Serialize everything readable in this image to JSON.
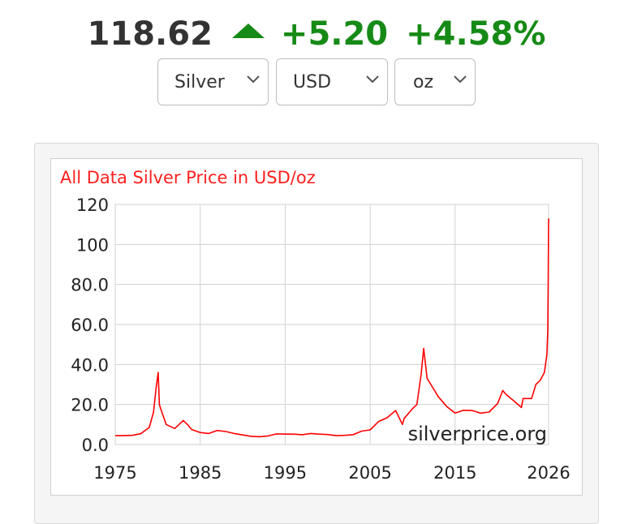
{
  "quote": {
    "price": "118.62",
    "change_abs": "+5.20",
    "change_pct": "+4.58%",
    "direction": "up",
    "up_color": "#168a16"
  },
  "selectors": {
    "metal": "Silver",
    "currency": "USD",
    "unit": "oz"
  },
  "chart_data": {
    "type": "line",
    "title": "All Data Silver Price in USD/oz",
    "xlabel": "",
    "ylabel": "",
    "xlim": [
      1975,
      2026
    ],
    "ylim": [
      0,
      120
    ],
    "x_ticks": [
      "1975",
      "1985",
      "1995",
      "2005",
      "2015",
      "2026"
    ],
    "y_ticks": [
      "0.0",
      "20.0",
      "40.0",
      "60.0",
      "80.0",
      "100",
      "120"
    ],
    "grid": true,
    "legend": "none",
    "watermark": "silverprice.org",
    "series": [
      {
        "color": "#ff0000",
        "x": [
          1975,
          1976,
          1977,
          1978,
          1979,
          1979.5,
          1979.8,
          1980.05,
          1980.2,
          1980.5,
          1981,
          1982,
          1983,
          1983.5,
          1984,
          1985,
          1986,
          1987,
          1988,
          1989,
          1990,
          1991,
          1992,
          1993,
          1994,
          1995,
          1996,
          1997,
          1998,
          1999,
          2000,
          2001,
          2002,
          2003,
          2004,
          2005,
          2006,
          2007,
          2008,
          2008.8,
          2009,
          2010,
          2010.5,
          2011,
          2011.3,
          2011.7,
          2012,
          2013,
          2014,
          2015,
          2016,
          2017,
          2018,
          2019,
          2020,
          2020.6,
          2021,
          2022,
          2022.8,
          2023,
          2024,
          2024.5,
          2025,
          2025.5,
          2025.8,
          2025.9,
          2025.95,
          2026
        ],
        "y": [
          4.4,
          4.4,
          4.6,
          5.4,
          8.5,
          16,
          28,
          36,
          20,
          16,
          10,
          8,
          12,
          10,
          7.5,
          6,
          5.5,
          7,
          6.5,
          5.5,
          4.8,
          4.1,
          3.9,
          4.3,
          5.3,
          5.2,
          5.2,
          4.9,
          5.5,
          5.2,
          5.0,
          4.4,
          4.6,
          4.9,
          6.7,
          7.3,
          11.5,
          13.4,
          17,
          10,
          13,
          18,
          20,
          35,
          48,
          33,
          31,
          24,
          19,
          15.7,
          17.1,
          17,
          15.7,
          16.2,
          20.5,
          27,
          25,
          21.5,
          18.5,
          23,
          23,
          30,
          32,
          36,
          45,
          57,
          80,
          113
        ]
      }
    ]
  }
}
